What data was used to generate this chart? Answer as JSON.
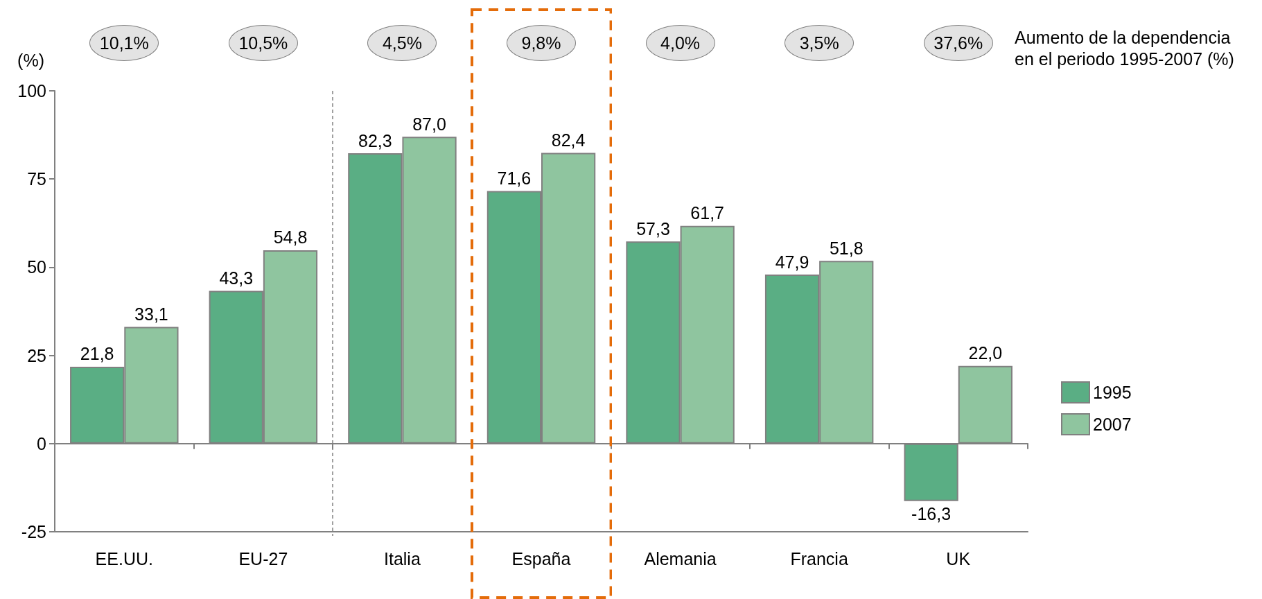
{
  "chart_data": {
    "type": "bar",
    "ylabel": "(%)",
    "categories": [
      "EE.UU.",
      "EU-27",
      "Italia",
      "España",
      "Alemania",
      "Francia",
      "UK"
    ],
    "series": [
      {
        "name": "1995",
        "color": "#5aae84",
        "values": [
          21.8,
          43.3,
          82.3,
          71.6,
          57.3,
          47.9,
          -16.3
        ],
        "value_labels": [
          "21,8",
          "43,3",
          "82,3",
          "71,6",
          "57,3",
          "47,9",
          "-16,3"
        ]
      },
      {
        "name": "2007",
        "color": "#8fc59f",
        "values": [
          33.1,
          54.8,
          87.0,
          82.4,
          61.7,
          51.8,
          22.0
        ],
        "value_labels": [
          "33,1",
          "54,8",
          "87,0",
          "82,4",
          "61,7",
          "51,8",
          "22,0"
        ]
      }
    ],
    "ylim": [
      -25,
      100
    ],
    "yticks": [
      -25,
      0,
      25,
      50,
      75,
      100
    ],
    "legend": "right",
    "annotations": [
      "10,1%",
      "10,5%",
      "4,5%",
      "9,8%",
      "4,0%",
      "3,5%",
      "37,6%",
      "Aumento de la dependencia en el periodo 1995-2007 (%)"
    ]
  }
}
